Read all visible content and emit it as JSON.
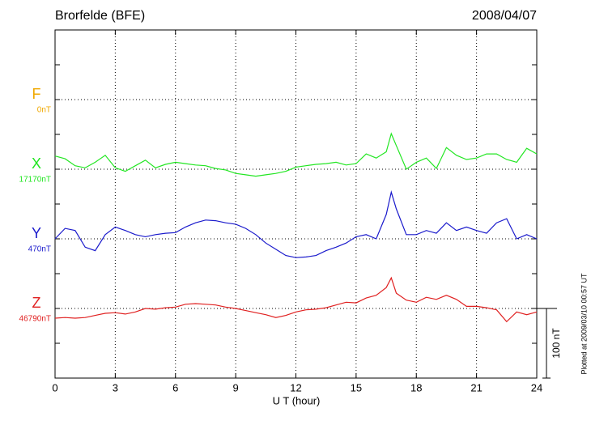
{
  "chart_data": {
    "type": "line",
    "title": "Brorfelde (BFE)",
    "date": "2008/04/07",
    "x_label": "U T (hour)",
    "footnote": "Plotted at 2009/03/10 00:57 UT",
    "scale_bar": {
      "label": "100 nT",
      "value": 100
    },
    "xlim": [
      0,
      24
    ],
    "xticks": [
      0,
      3,
      6,
      9,
      12,
      15,
      18,
      21,
      24
    ],
    "ylim": [
      0,
      500
    ],
    "yticks": [
      0,
      50,
      100,
      150,
      200,
      250,
      300,
      350,
      400,
      450,
      500
    ],
    "ygrid": [
      100,
      200,
      300,
      400
    ],
    "grid": true,
    "x": [
      0,
      0.5,
      1,
      1.5,
      2,
      2.5,
      3,
      3.5,
      4,
      4.5,
      5,
      5.5,
      6,
      6.5,
      7,
      7.5,
      8,
      8.5,
      9,
      9.5,
      10,
      10.5,
      11,
      11.5,
      12,
      12.5,
      13,
      13.5,
      14,
      14.5,
      15,
      15.5,
      16,
      16.5,
      16.75,
      17,
      17.5,
      18,
      18.5,
      19,
      19.5,
      20,
      20.5,
      21,
      21.5,
      22,
      22.5,
      23,
      23.5,
      24
    ],
    "series": [
      {
        "name": "F",
        "baseline_label": "0nT",
        "baseline": 400,
        "color": "#f0a800"
      },
      {
        "name": "X",
        "baseline_label": "17170nT",
        "baseline": 300,
        "color": "#22e622",
        "values": [
          319,
          315,
          305,
          302,
          310,
          320,
          302,
          297,
          305,
          313,
          302,
          307,
          310,
          308,
          306,
          305,
          301,
          299,
          294,
          292,
          290,
          292,
          294,
          297,
          303,
          305,
          307,
          308,
          310,
          306,
          308,
          322,
          316,
          325,
          351,
          334,
          300,
          310,
          316,
          301,
          331,
          320,
          314,
          316,
          322,
          322,
          314,
          310,
          330,
          322
        ]
      },
      {
        "name": "Y",
        "baseline_label": "470nT",
        "baseline": 200,
        "color": "#1a1acc",
        "values": [
          200,
          215,
          212,
          188,
          183,
          206,
          217,
          212,
          206,
          203,
          206,
          208,
          209,
          217,
          223,
          227,
          226,
          223,
          221,
          215,
          206,
          194,
          185,
          176,
          173,
          174,
          176,
          183,
          188,
          194,
          203,
          206,
          200,
          235,
          267,
          243,
          206,
          206,
          212,
          208,
          223,
          212,
          217,
          212,
          208,
          223,
          229,
          200,
          206,
          200
        ]
      },
      {
        "name": "Z",
        "baseline_label": "46790nT",
        "baseline": 100,
        "color": "#e02020",
        "values": [
          86,
          87,
          86,
          87,
          90,
          93,
          94,
          92,
          95,
          100,
          99,
          101,
          102,
          106,
          107,
          106,
          105,
          102,
          100,
          97,
          94,
          91,
          87,
          90,
          95,
          98,
          99,
          101,
          105,
          109,
          108,
          115,
          119,
          130,
          144,
          122,
          112,
          109,
          116,
          113,
          119,
          113,
          103,
          103,
          101,
          98,
          81,
          95,
          91,
          95
        ]
      }
    ]
  }
}
